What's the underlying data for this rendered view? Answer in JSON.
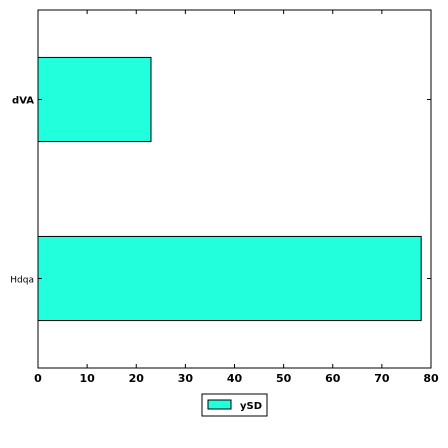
{
  "chart_data": {
    "type": "bar",
    "orientation": "horizontal",
    "categories": [
      "Hdqa",
      "dVA"
    ],
    "category_bold": [
      false,
      true
    ],
    "series": [
      {
        "name": "ySD",
        "values": [
          78,
          23
        ],
        "color": "#22ffdd"
      }
    ],
    "xlim": [
      0,
      80
    ],
    "xticks": [
      0,
      10,
      20,
      30,
      40,
      50,
      60,
      70,
      80
    ],
    "title": "",
    "xlabel": "",
    "ylabel": "",
    "grid": false,
    "legend_position": "bottom-center"
  }
}
